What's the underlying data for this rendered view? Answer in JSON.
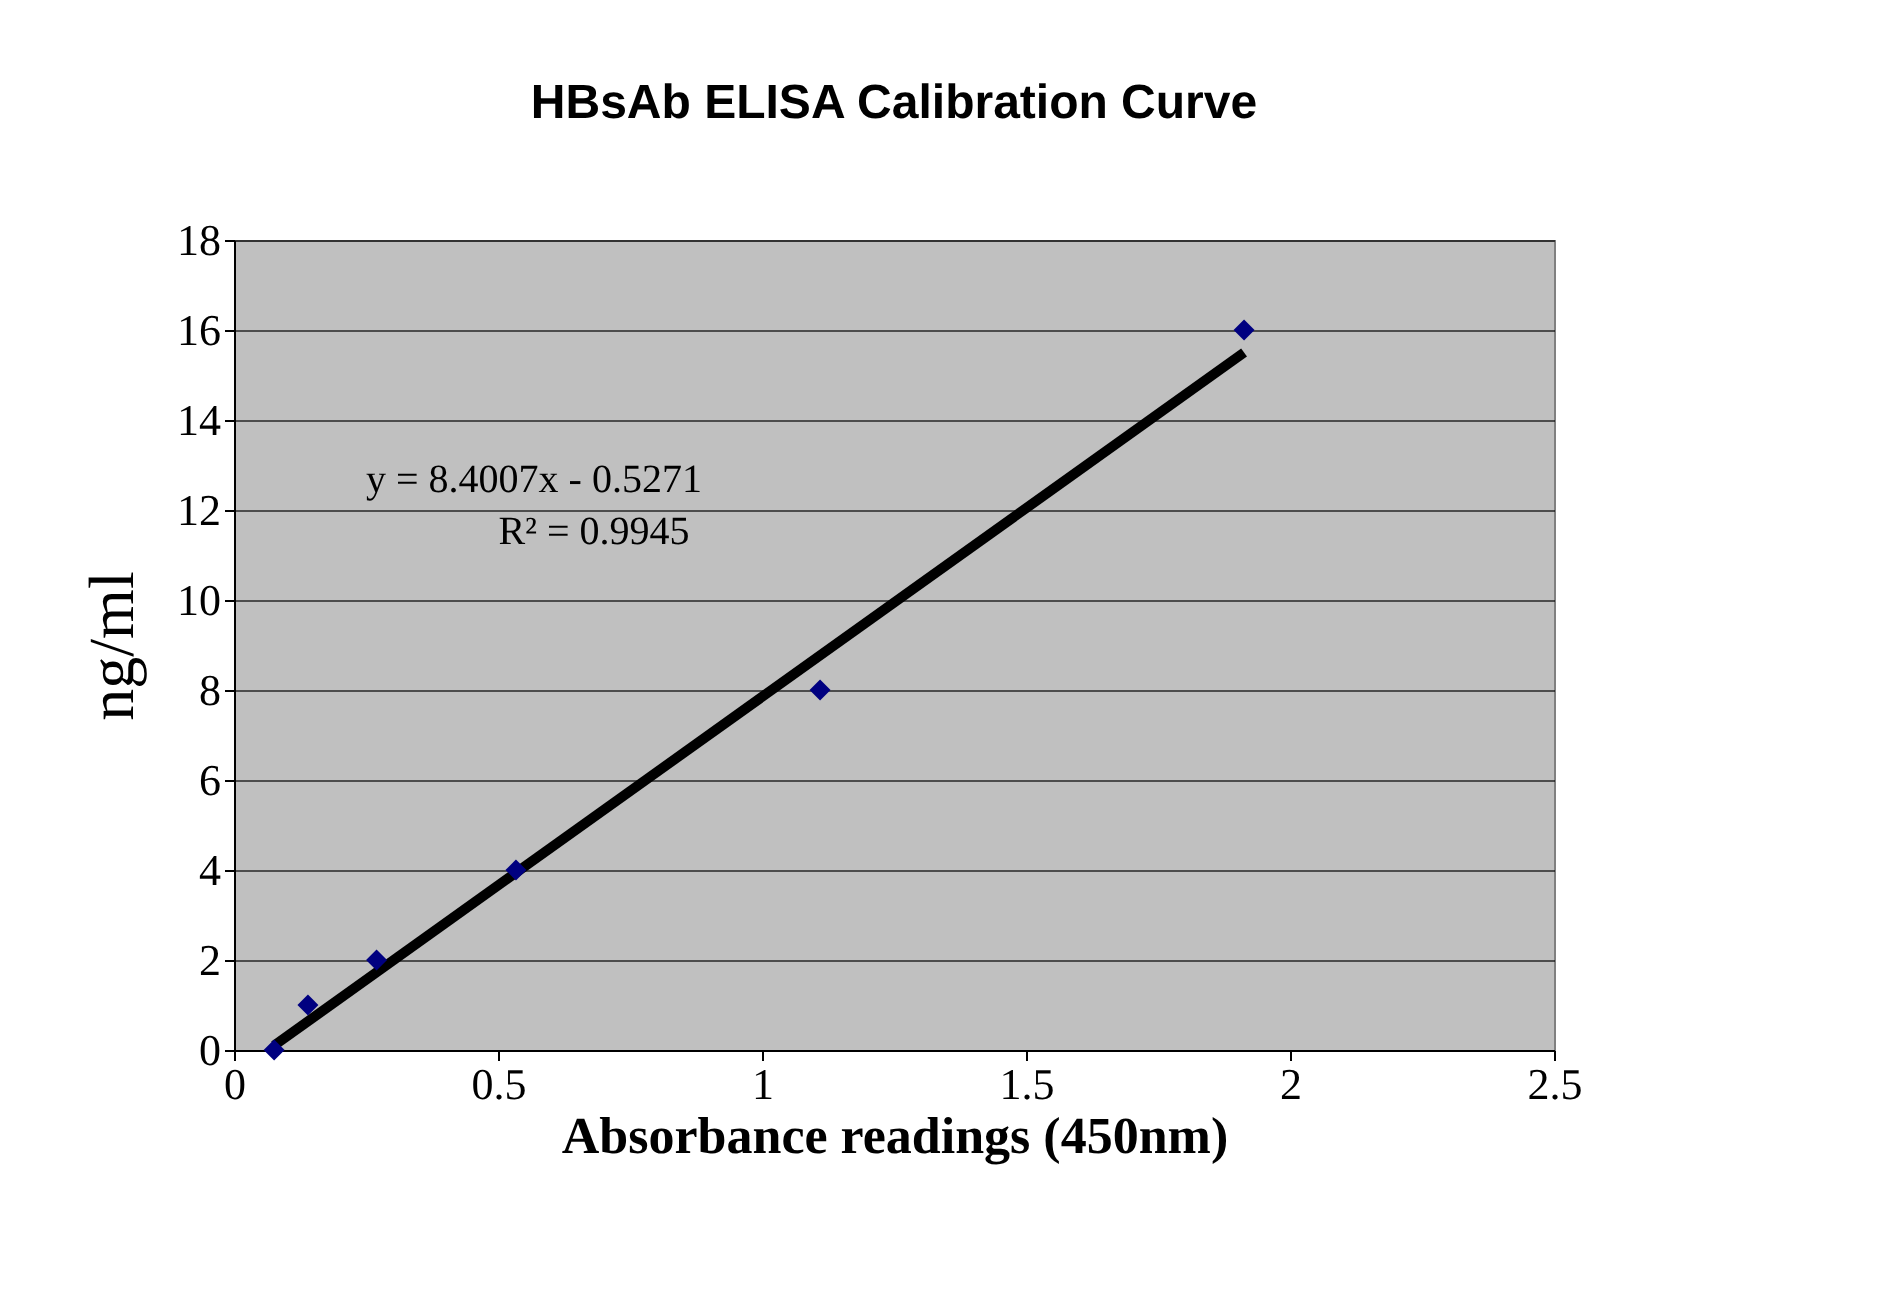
{
  "chart_data": {
    "type": "scatter",
    "title": "HBsAb ELISA Calibration Curve",
    "xlabel": "Absorbance readings (450nm)",
    "ylabel": "ng/ml",
    "xlim": [
      0,
      2.5
    ],
    "xticks": [
      0,
      0.5,
      1,
      1.5,
      2,
      2.5
    ],
    "ylim": [
      0,
      18
    ],
    "yticks": [
      0,
      2,
      4,
      6,
      8,
      10,
      12,
      14,
      16,
      18
    ],
    "grid": "y",
    "marker": "diamond",
    "series": [
      {
        "color": "#000080",
        "x": [
          0.076,
          0.14,
          0.27,
          0.534,
          1.11,
          1.913
        ],
        "values": [
          0,
          1,
          2,
          4,
          8,
          16
        ]
      },
      {
        "type": "line",
        "marker": "none",
        "color": "#000000",
        "x": [
          0.076,
          1.913
        ],
        "values": [
          0.1,
          15.5
        ]
      }
    ],
    "annotations": [
      "y = 8.4007x - 0.5271",
      "R² = 0.9945"
    ]
  }
}
